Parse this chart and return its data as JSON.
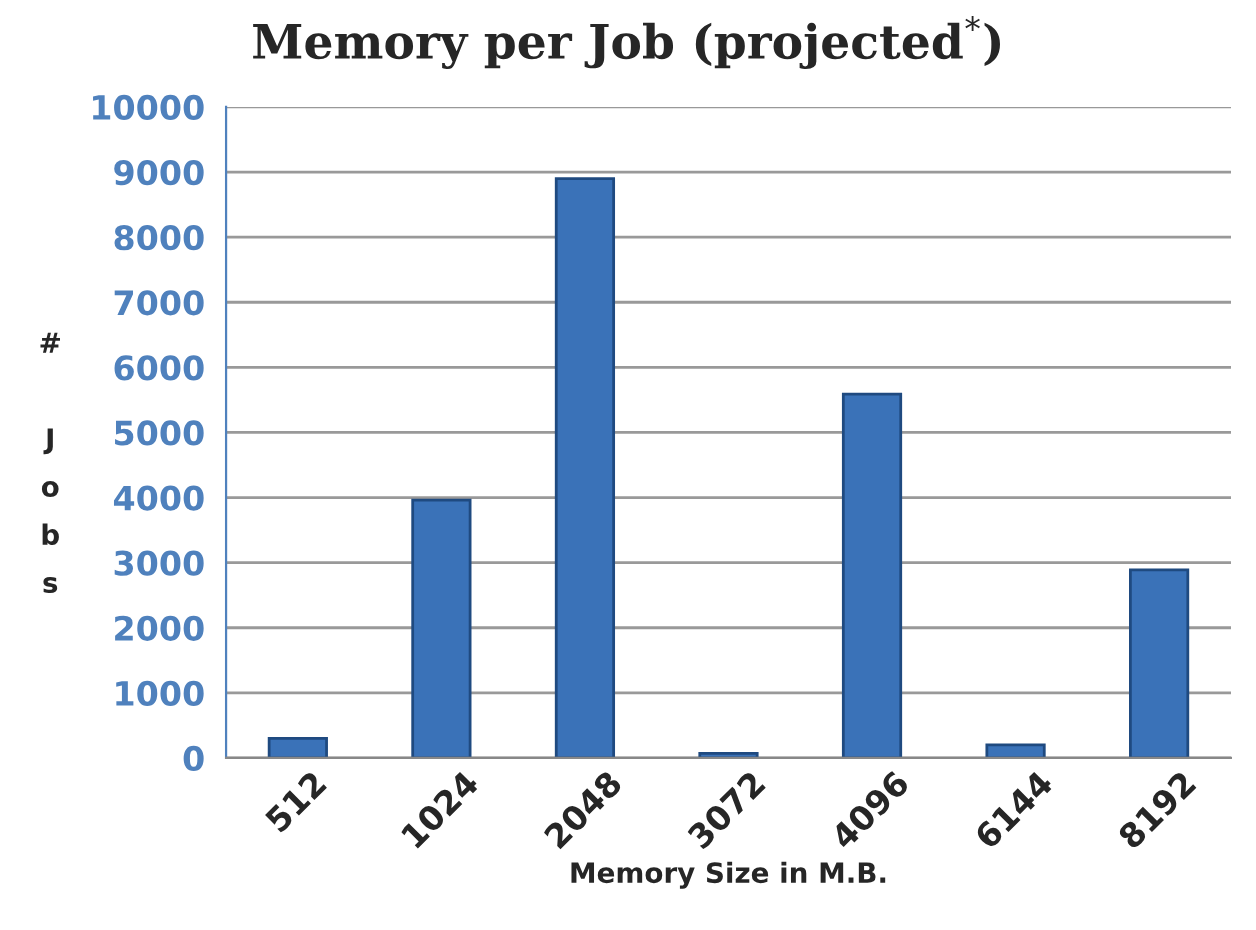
{
  "chart_data": {
    "type": "bar",
    "title": "Memory per Job (projected$^{*}$)",
    "xlabel": "Memory Size in M.B.",
    "ylabel": "# Jobs",
    "categories": [
      "512",
      "1024",
      "2048",
      "3072",
      "4096",
      "6144",
      "8192"
    ],
    "values": [
      300,
      3960,
      8900,
      70,
      5590,
      200,
      2890
    ],
    "color": "#3a72b8",
    "ylim": [
      0,
      10000
    ],
    "yticks": [
      0,
      1000,
      2000,
      3000,
      4000,
      5000,
      6000,
      7000,
      8000,
      9000,
      10000
    ],
    "grid": "y"
  }
}
